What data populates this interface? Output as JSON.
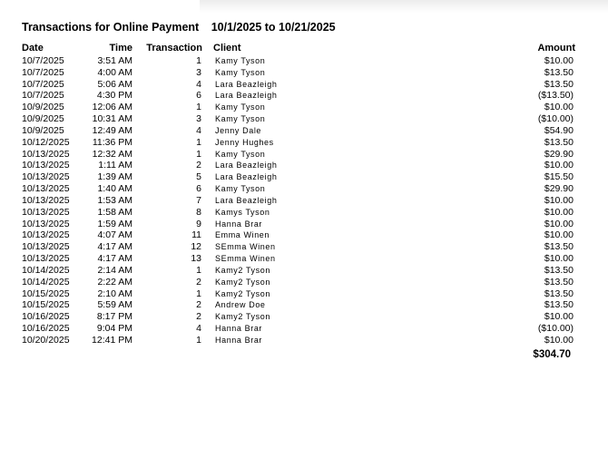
{
  "report": {
    "title": "Transactions for Online Payment",
    "date_range": "10/1/2025 to 10/21/2025",
    "columns": {
      "date": "Date",
      "time": "Time",
      "transaction": "Transaction",
      "client": "Client",
      "amount": "Amount"
    },
    "rows": [
      {
        "date": "10/7/2025",
        "time": "3:51 AM",
        "transaction": "1",
        "client": "Kamy Tyson",
        "amount": "$10.00"
      },
      {
        "date": "10/7/2025",
        "time": "4:00 AM",
        "transaction": "3",
        "client": "Kamy Tyson",
        "amount": "$13.50"
      },
      {
        "date": "10/7/2025",
        "time": "5:06 AM",
        "transaction": "4",
        "client": "Lara Beazleigh",
        "amount": "$13.50"
      },
      {
        "date": "10/7/2025",
        "time": "4:30 PM",
        "transaction": "6",
        "client": "Lara Beazleigh",
        "amount": "($13.50)"
      },
      {
        "date": "10/9/2025",
        "time": "12:06 AM",
        "transaction": "1",
        "client": "Kamy Tyson",
        "amount": "$10.00"
      },
      {
        "date": "10/9/2025",
        "time": "10:31 AM",
        "transaction": "3",
        "client": "Kamy Tyson",
        "amount": "($10.00)"
      },
      {
        "date": "10/9/2025",
        "time": "12:49 AM",
        "transaction": "4",
        "client": "Jenny Dale",
        "amount": "$54.90"
      },
      {
        "date": "10/12/2025",
        "time": "11:36 PM",
        "transaction": "1",
        "client": "Jenny Hughes",
        "amount": "$13.50"
      },
      {
        "date": "10/13/2025",
        "time": "12:32 AM",
        "transaction": "1",
        "client": "Kamy Tyson",
        "amount": "$29.90"
      },
      {
        "date": "10/13/2025",
        "time": "1:11 AM",
        "transaction": "2",
        "client": "Lara Beazleigh",
        "amount": "$10.00"
      },
      {
        "date": "10/13/2025",
        "time": "1:39 AM",
        "transaction": "5",
        "client": "Lara Beazleigh",
        "amount": "$15.50"
      },
      {
        "date": "10/13/2025",
        "time": "1:40 AM",
        "transaction": "6",
        "client": "Kamy Tyson",
        "amount": "$29.90"
      },
      {
        "date": "10/13/2025",
        "time": "1:53 AM",
        "transaction": "7",
        "client": "Lara Beazleigh",
        "amount": "$10.00"
      },
      {
        "date": "10/13/2025",
        "time": "1:58 AM",
        "transaction": "8",
        "client": "Kamys Tyson",
        "amount": "$10.00"
      },
      {
        "date": "10/13/2025",
        "time": "1:59 AM",
        "transaction": "9",
        "client": "Hanna Brar",
        "amount": "$10.00"
      },
      {
        "date": "10/13/2025",
        "time": "4:07 AM",
        "transaction": "11",
        "client": "Emma Winen",
        "amount": "$10.00"
      },
      {
        "date": "10/13/2025",
        "time": "4:17 AM",
        "transaction": "12",
        "client": "SEmma Winen",
        "amount": "$13.50"
      },
      {
        "date": "10/13/2025",
        "time": "4:17 AM",
        "transaction": "13",
        "client": "SEmma Winen",
        "amount": "$10.00"
      },
      {
        "date": "10/14/2025",
        "time": "2:14 AM",
        "transaction": "1",
        "client": "Kamy2 Tyson",
        "amount": "$13.50"
      },
      {
        "date": "10/14/2025",
        "time": "2:22 AM",
        "transaction": "2",
        "client": "Kamy2 Tyson",
        "amount": "$13.50"
      },
      {
        "date": "10/15/2025",
        "time": "2:10 AM",
        "transaction": "1",
        "client": "Kamy2 Tyson",
        "amount": "$13.50"
      },
      {
        "date": "10/15/2025",
        "time": "5:59 AM",
        "transaction": "2",
        "client": "Andrew Doe",
        "amount": "$13.50"
      },
      {
        "date": "10/16/2025",
        "time": "8:17 PM",
        "transaction": "2",
        "client": "Kamy2 Tyson",
        "amount": "$10.00"
      },
      {
        "date": "10/16/2025",
        "time": "9:04 PM",
        "transaction": "4",
        "client": "Hanna Brar",
        "amount": "($10.00)"
      },
      {
        "date": "10/20/2025",
        "time": "12:41 PM",
        "transaction": "1",
        "client": "Hanna Brar",
        "amount": "$10.00"
      }
    ],
    "total": "$304.70"
  }
}
